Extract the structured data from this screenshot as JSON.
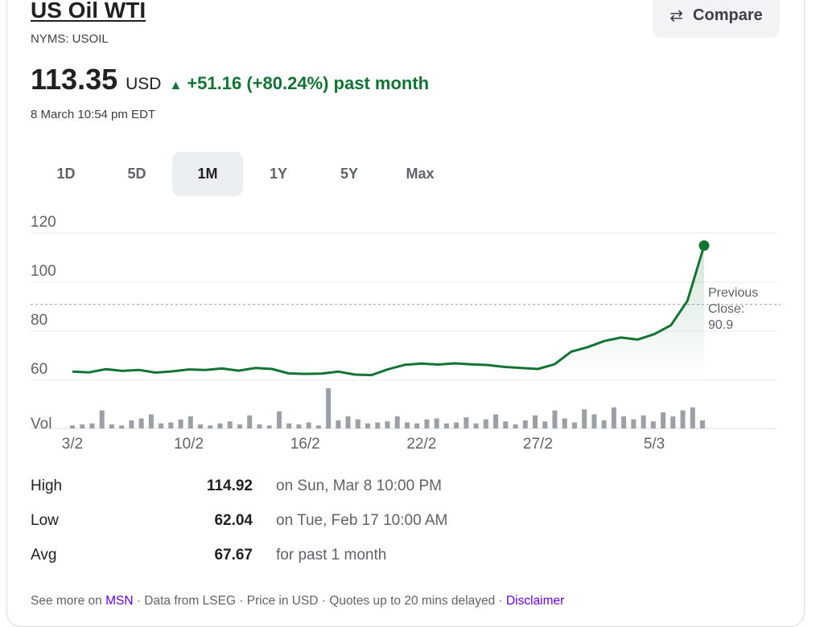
{
  "header": {
    "title": "US Oil WTI",
    "symbol": "NYMS: USOIL",
    "compare_label": "Compare",
    "compare_icon": "swap-arrows-icon"
  },
  "quote": {
    "price": "113.35",
    "currency": "USD",
    "arrow": "▲",
    "change": "+51.16 (+80.24%) past month",
    "timestamp": "8 March 10:54 pm EDT",
    "change_color": "#137333"
  },
  "tabs": [
    {
      "label": "1D",
      "active": false
    },
    {
      "label": "5D",
      "active": false
    },
    {
      "label": "1M",
      "active": true
    },
    {
      "label": "1Y",
      "active": false
    },
    {
      "label": "5Y",
      "active": false
    },
    {
      "label": "Max",
      "active": false
    }
  ],
  "chart_data": {
    "type": "line",
    "title": "",
    "xlabel": "",
    "ylabel": "",
    "ylim": [
      50,
      120
    ],
    "yticks": [
      60,
      80,
      100,
      120
    ],
    "xticks": [
      "3/2",
      "10/2",
      "16/2",
      "22/2",
      "27/2",
      "5/3"
    ],
    "x_ticks_index": [
      0,
      7,
      14,
      21,
      28,
      35
    ],
    "series": [
      {
        "values": [
          63.5,
          63.2,
          64.5,
          63.8,
          64.2,
          63.1,
          63.6,
          64.4,
          64.2,
          64.8,
          63.9,
          65.0,
          64.6,
          62.8,
          62.6,
          62.7,
          63.5,
          62.3,
          62.1,
          64.5,
          66.3,
          66.8,
          66.4,
          66.9,
          66.5,
          66.2,
          65.4,
          65.0,
          64.6,
          66.5,
          71.6,
          73.5,
          76.0,
          77.4,
          76.6,
          78.8,
          82.4,
          92.4,
          114.92
        ],
        "color": "#137333"
      }
    ],
    "volume_label": "Vol",
    "volume": [
      3,
      4,
      5,
      18,
      4,
      3,
      8,
      10,
      14,
      5,
      6,
      9,
      12,
      4,
      3,
      5,
      7,
      4,
      13,
      4,
      3,
      17,
      5,
      4,
      6,
      3,
      40,
      8,
      12,
      9,
      5,
      6,
      7,
      12,
      6,
      5,
      9,
      10,
      5,
      6,
      11,
      5,
      9,
      14,
      7,
      4,
      8,
      13,
      7,
      18,
      10,
      6,
      19,
      14,
      8,
      21,
      12,
      9,
      13,
      7,
      16,
      12,
      18,
      21,
      8
    ],
    "previous_close": {
      "value": 90.9,
      "label_line1": "Previous",
      "label_line2": "Close:",
      "label_line3": "90.9"
    },
    "last_point": 114.92,
    "grid": true
  },
  "stats": [
    {
      "label": "High",
      "value": "114.92",
      "note": "on Sun, Mar 8 10:00 PM"
    },
    {
      "label": "Low",
      "value": "62.04",
      "note": "on Tue, Feb 17 10:00 AM"
    },
    {
      "label": "Avg",
      "value": "67.67",
      "note": "for past 1 month"
    }
  ],
  "footer": {
    "prefix": "See more on ",
    "msn": "MSN",
    "middle": " · Data from LSEG · Price in USD · Quotes up to 20 mins delayed · ",
    "disclaimer": "Disclaimer"
  }
}
